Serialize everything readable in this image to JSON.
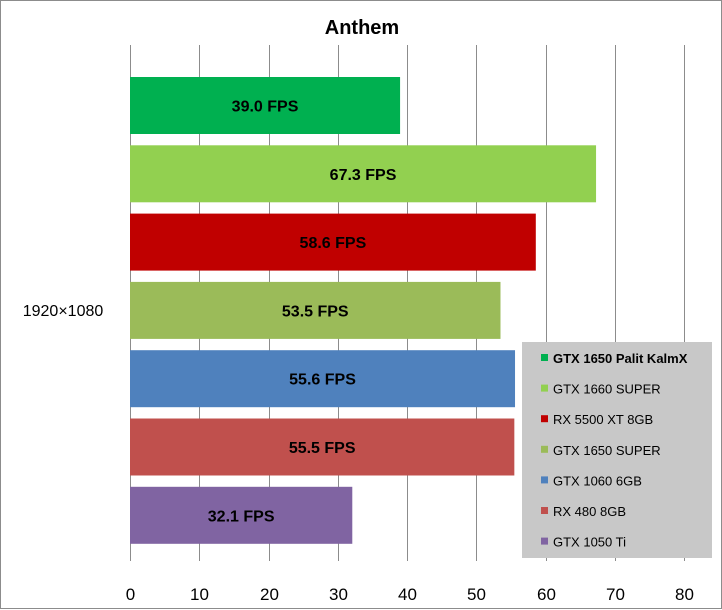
{
  "chart_data": {
    "type": "bar",
    "orientation": "horizontal",
    "title": "Anthem",
    "categories": [
      "1920×1080"
    ],
    "series": [
      {
        "name": "GTX 1650 Palit KalmX",
        "values": [
          39.0
        ],
        "label": "39.0 FPS",
        "color": "#00b050",
        "highlight": true
      },
      {
        "name": "GTX 1660 SUPER",
        "values": [
          67.3
        ],
        "label": "67.3 FPS",
        "color": "#92d050"
      },
      {
        "name": "RX 5500 XT 8GB",
        "values": [
          58.6
        ],
        "label": "58.6 FPS",
        "color": "#c00000"
      },
      {
        "name": "GTX 1650 SUPER",
        "values": [
          53.5
        ],
        "label": "53.5 FPS",
        "color": "#9bbb59"
      },
      {
        "name": "GTX 1060 6GB",
        "values": [
          55.6
        ],
        "label": "55.6 FPS",
        "color": "#4f81bd"
      },
      {
        "name": "RX 480 8GB",
        "values": [
          55.5
        ],
        "label": "55.5 FPS",
        "color": "#c0504d"
      },
      {
        "name": "GTX 1050 Ti",
        "values": [
          32.1
        ],
        "label": "32.1 FPS",
        "color": "#8064a2"
      }
    ],
    "xlim": [
      0,
      80
    ],
    "xticks": [
      "0",
      "10",
      "20",
      "30",
      "40",
      "50",
      "60",
      "70",
      "80"
    ],
    "grid": true,
    "legend_position": "right",
    "xlabel": "",
    "ylabel": ""
  },
  "colors": {
    "gridline": "#8c8c8c",
    "legend_background": "#c8c8c8",
    "frame": "#8c8c8c"
  }
}
